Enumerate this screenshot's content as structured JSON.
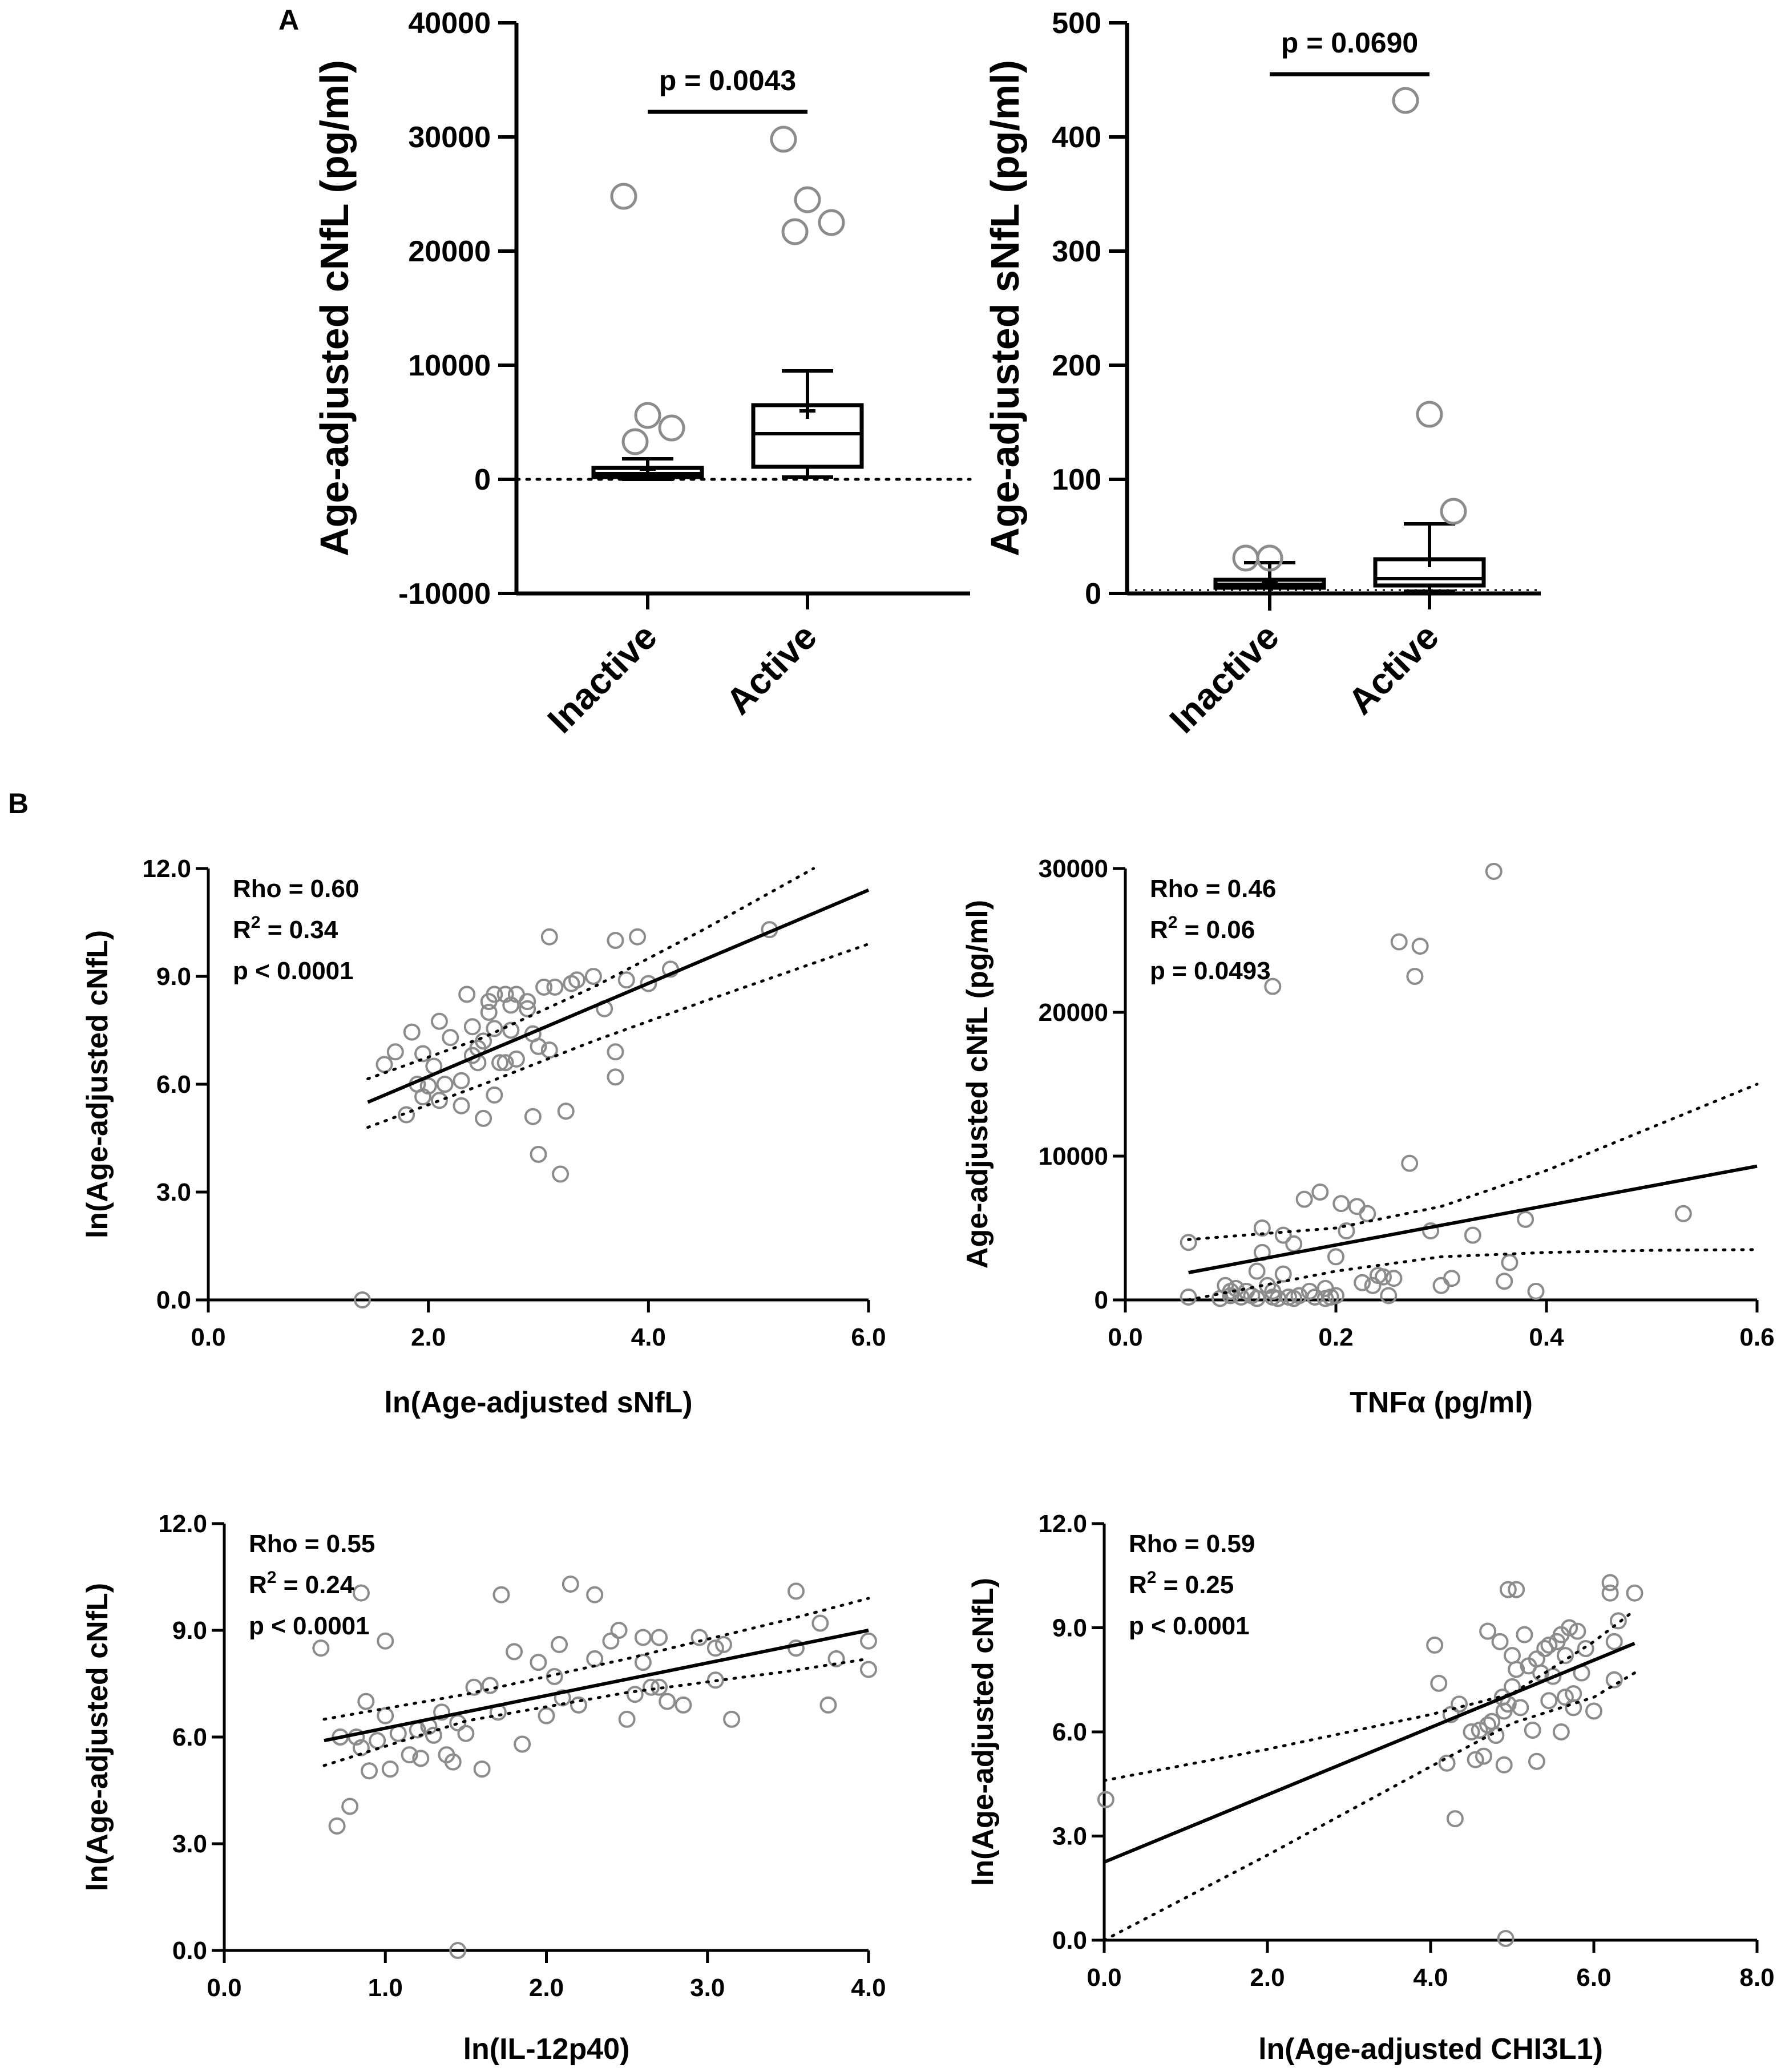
{
  "panel_labels": {
    "A": "A",
    "B": "B"
  },
  "colors": {
    "ink": "#000000",
    "marker": "#8c8c8c",
    "background": "#ffffff"
  },
  "chart_data": [
    {
      "id": "a1",
      "type": "box",
      "ylabel": "Age-adjusted cNfL (pg/ml)",
      "ylim": [
        -10000,
        40000
      ],
      "yticks": [
        -10000,
        0,
        10000,
        20000,
        30000,
        40000
      ],
      "categories": [
        "Inactive",
        "Active"
      ],
      "baseline": 0,
      "groups": [
        {
          "name": "Inactive",
          "q1": 200,
          "median": 500,
          "q3": 1000,
          "whisker_low": 0,
          "whisker_high": 1800,
          "mean": 900,
          "outliers": [
            24800,
            5600,
            4500,
            3300
          ]
        },
        {
          "name": "Active",
          "q1": 1100,
          "median": 4000,
          "q3": 6500,
          "whisker_low": 200,
          "whisker_high": 9500,
          "mean": 6000,
          "outliers": [
            29800,
            24500,
            22500,
            21700
          ]
        }
      ],
      "significance": {
        "text": "p = 0.0043",
        "y": 32200
      }
    },
    {
      "id": "a2",
      "type": "box",
      "ylabel": "Age-adjusted sNfL (pg/ml)",
      "ylim": [
        0,
        500
      ],
      "yticks": [
        0,
        100,
        200,
        300,
        400,
        500
      ],
      "categories": [
        "Inactive",
        "Active"
      ],
      "baseline": 0,
      "groups": [
        {
          "name": "Inactive",
          "q1": 5,
          "median": 8,
          "q3": 12,
          "whisker_low": -15,
          "whisker_high": 27,
          "mean": 9,
          "outliers": [
            31,
            31
          ]
        },
        {
          "name": "Active",
          "q1": 7,
          "median": 13,
          "q3": 30,
          "whisker_low": 2,
          "whisker_high": 61,
          "mean": 30,
          "outliers": [
            432,
            157,
            72
          ]
        }
      ],
      "significance": {
        "text": "p = 0.0690",
        "y": 455
      }
    },
    {
      "id": "b1",
      "type": "scatter",
      "xlabel": "ln(Age-adjusted sNfL)",
      "ylabel": "ln(Age-adjusted cNfL)",
      "xlim": [
        0,
        6
      ],
      "ylim": [
        0,
        12
      ],
      "xticks": [
        0,
        2,
        4,
        6
      ],
      "yticks": [
        0,
        3,
        6,
        9,
        12
      ],
      "xtick_labels": [
        "0.0",
        "2.0",
        "4.0",
        "6.0"
      ],
      "ytick_labels": [
        "0.0",
        "3.0",
        "6.0",
        "9.0",
        "12.0"
      ],
      "stats": {
        "rho": "Rho = 0.60",
        "r2_prefix": "R",
        "r2_suffix": " = 0.34",
        "p": "p < 0.0001"
      },
      "fit": {
        "x": [
          1.45,
          6.0
        ],
        "y": [
          5.5,
          11.4
        ]
      },
      "ci_upper": {
        "x": [
          1.45,
          2.5,
          3.5,
          4.5,
          5.5
        ],
        "y": [
          6.15,
          7.3,
          8.7,
          10.3,
          12.0
        ]
      },
      "ci_lower": {
        "x": [
          1.45,
          2.5,
          3.5,
          4.5,
          6.0
        ],
        "y": [
          4.8,
          6.0,
          7.2,
          8.3,
          9.9
        ]
      },
      "points": [
        [
          1.4,
          0
        ],
        [
          1.6,
          6.55
        ],
        [
          1.7,
          6.9
        ],
        [
          1.8,
          5.15
        ],
        [
          1.85,
          7.45
        ],
        [
          1.9,
          6.0
        ],
        [
          1.95,
          5.65
        ],
        [
          1.95,
          6.85
        ],
        [
          2.0,
          5.95
        ],
        [
          2.05,
          6.5
        ],
        [
          2.1,
          7.75
        ],
        [
          2.1,
          5.55
        ],
        [
          2.15,
          6.0
        ],
        [
          2.2,
          7.3
        ],
        [
          2.3,
          6.1
        ],
        [
          2.3,
          5.4
        ],
        [
          2.35,
          8.5
        ],
        [
          2.4,
          7.6
        ],
        [
          2.4,
          6.8
        ],
        [
          2.45,
          7.0
        ],
        [
          2.45,
          6.6
        ],
        [
          2.5,
          7.2
        ],
        [
          2.5,
          5.05
        ],
        [
          2.55,
          8.0
        ],
        [
          2.55,
          8.3
        ],
        [
          2.6,
          8.5
        ],
        [
          2.6,
          7.55
        ],
        [
          2.6,
          5.7
        ],
        [
          2.65,
          6.6
        ],
        [
          2.7,
          8.5
        ],
        [
          2.7,
          6.6
        ],
        [
          2.75,
          8.2
        ],
        [
          2.75,
          7.5
        ],
        [
          2.8,
          8.5
        ],
        [
          2.8,
          6.7
        ],
        [
          2.9,
          8.3
        ],
        [
          2.9,
          8.1
        ],
        [
          2.95,
          7.4
        ],
        [
          2.95,
          5.1
        ],
        [
          3.0,
          7.05
        ],
        [
          3.0,
          4.05
        ],
        [
          3.05,
          8.7
        ],
        [
          3.1,
          6.95
        ],
        [
          3.1,
          10.1
        ],
        [
          3.15,
          8.7
        ],
        [
          3.2,
          3.5
        ],
        [
          3.25,
          5.25
        ],
        [
          3.3,
          8.8
        ],
        [
          3.35,
          8.9
        ],
        [
          3.5,
          9.0
        ],
        [
          3.6,
          8.1
        ],
        [
          3.7,
          6.9
        ],
        [
          3.7,
          6.2
        ],
        [
          3.7,
          10.0
        ],
        [
          3.8,
          8.9
        ],
        [
          3.9,
          10.1
        ],
        [
          4.0,
          8.8
        ],
        [
          4.2,
          9.2
        ],
        [
          5.1,
          10.3
        ]
      ]
    },
    {
      "id": "b2",
      "type": "scatter",
      "xlabel": "TNFα (pg/ml)",
      "ylabel": "Age-adjusted cNfL (pg/ml)",
      "xlim": [
        0,
        0.6
      ],
      "ylim": [
        0,
        30000
      ],
      "xticks": [
        0,
        0.2,
        0.4,
        0.6
      ],
      "yticks": [
        0,
        10000,
        20000,
        30000
      ],
      "xtick_labels": [
        "0.0",
        "0.2",
        "0.4",
        "0.6"
      ],
      "ytick_labels": [
        "0",
        "10000",
        "20000",
        "30000"
      ],
      "stats": {
        "rho": "Rho = 0.46",
        "r2_prefix": "R",
        "r2_suffix": " = 0.06",
        "p": "p = 0.0493"
      },
      "fit": {
        "x": [
          0.06,
          0.6
        ],
        "y": [
          1900,
          9300
        ]
      },
      "ci_upper": {
        "x": [
          0.06,
          0.2,
          0.3,
          0.4,
          0.5,
          0.6
        ],
        "y": [
          4200,
          5000,
          6500,
          9000,
          12000,
          15000
        ]
      },
      "ci_lower": {
        "x": [
          0.06,
          0.2,
          0.3,
          0.4,
          0.5,
          0.6
        ],
        "y": [
          -400,
          2000,
          3000,
          3300,
          3450,
          3500
        ]
      },
      "points": [
        [
          0.06,
          4000
        ],
        [
          0.06,
          200
        ],
        [
          0.09,
          100
        ],
        [
          0.095,
          1000
        ],
        [
          0.1,
          600
        ],
        [
          0.1,
          300
        ],
        [
          0.105,
          800
        ],
        [
          0.11,
          200
        ],
        [
          0.115,
          600
        ],
        [
          0.12,
          300
        ],
        [
          0.125,
          100
        ],
        [
          0.125,
          2000
        ],
        [
          0.13,
          3300
        ],
        [
          0.13,
          5000
        ],
        [
          0.135,
          1000
        ],
        [
          0.14,
          200
        ],
        [
          0.14,
          600
        ],
        [
          0.145,
          100
        ],
        [
          0.15,
          1800
        ],
        [
          0.15,
          4500
        ],
        [
          0.155,
          200
        ],
        [
          0.16,
          100
        ],
        [
          0.16,
          3900
        ],
        [
          0.165,
          300
        ],
        [
          0.17,
          7000
        ],
        [
          0.175,
          600
        ],
        [
          0.18,
          200
        ],
        [
          0.185,
          7500
        ],
        [
          0.19,
          100
        ],
        [
          0.19,
          800
        ],
        [
          0.195,
          200
        ],
        [
          0.2,
          300
        ],
        [
          0.2,
          3000
        ],
        [
          0.205,
          6700
        ],
        [
          0.21,
          4800
        ],
        [
          0.22,
          6500
        ],
        [
          0.225,
          1200
        ],
        [
          0.23,
          6000
        ],
        [
          0.235,
          1000
        ],
        [
          0.24,
          1700
        ],
        [
          0.245,
          1600
        ],
        [
          0.25,
          300
        ],
        [
          0.255,
          1500
        ],
        [
          0.26,
          24900
        ],
        [
          0.27,
          9500
        ],
        [
          0.275,
          22500
        ],
        [
          0.28,
          24600
        ],
        [
          0.29,
          4800
        ],
        [
          0.3,
          1000
        ],
        [
          0.31,
          1500
        ],
        [
          0.33,
          4500
        ],
        [
          0.35,
          29800
        ],
        [
          0.36,
          1300
        ],
        [
          0.365,
          2600
        ],
        [
          0.38,
          5600
        ],
        [
          0.39,
          600
        ],
        [
          0.53,
          6000
        ],
        [
          0.14,
          21800
        ]
      ]
    },
    {
      "id": "b3",
      "type": "scatter",
      "xlabel": "ln(IL-12p40)",
      "ylabel": "ln(Age-adjusted cNfL)",
      "xlim": [
        0,
        4
      ],
      "ylim": [
        0,
        12
      ],
      "xticks": [
        0,
        1,
        2,
        3,
        4
      ],
      "yticks": [
        0,
        3,
        6,
        9,
        12
      ],
      "xtick_labels": [
        "0.0",
        "1.0",
        "2.0",
        "3.0",
        "4.0"
      ],
      "ytick_labels": [
        "0.0",
        "3.0",
        "6.0",
        "9.0",
        "12.0"
      ],
      "stats": {
        "rho": "Rho = 0.55",
        "r2_prefix": "R",
        "r2_suffix": " = 0.24",
        "p": "p < 0.0001"
      },
      "fit": {
        "x": [
          0.62,
          4.0
        ],
        "y": [
          5.9,
          9.0
        ]
      },
      "ci_upper": {
        "x": [
          0.62,
          1.5,
          2.5,
          3.5,
          4.0
        ],
        "y": [
          6.5,
          7.2,
          8.2,
          9.3,
          9.9
        ]
      },
      "ci_lower": {
        "x": [
          0.62,
          1.5,
          2.5,
          3.5,
          4.0
        ],
        "y": [
          5.2,
          6.45,
          7.25,
          7.85,
          8.2
        ]
      },
      "points": [
        [
          0.6,
          8.5
        ],
        [
          0.7,
          3.5
        ],
        [
          0.72,
          6.0
        ],
        [
          0.78,
          4.05
        ],
        [
          0.82,
          6.0
        ],
        [
          0.85,
          10.05
        ],
        [
          0.85,
          5.7
        ],
        [
          0.88,
          7.0
        ],
        [
          0.9,
          5.05
        ],
        [
          0.95,
          5.9
        ],
        [
          1.0,
          8.7
        ],
        [
          1.0,
          6.6
        ],
        [
          1.03,
          5.1
        ],
        [
          1.08,
          6.1
        ],
        [
          1.15,
          5.5
        ],
        [
          1.2,
          6.2
        ],
        [
          1.22,
          5.4
        ],
        [
          1.27,
          6.3
        ],
        [
          1.3,
          6.05
        ],
        [
          1.35,
          6.7
        ],
        [
          1.38,
          5.5
        ],
        [
          1.42,
          5.3
        ],
        [
          1.45,
          6.4
        ],
        [
          1.5,
          6.1
        ],
        [
          1.55,
          7.4
        ],
        [
          1.6,
          5.1
        ],
        [
          1.65,
          7.45
        ],
        [
          1.7,
          6.7
        ],
        [
          1.72,
          10.0
        ],
        [
          1.8,
          8.4
        ],
        [
          1.85,
          5.8
        ],
        [
          1.95,
          8.1
        ],
        [
          2.0,
          6.6
        ],
        [
          2.05,
          7.7
        ],
        [
          2.08,
          8.6
        ],
        [
          2.1,
          7.1
        ],
        [
          2.15,
          10.3
        ],
        [
          2.2,
          6.9
        ],
        [
          2.3,
          10.0
        ],
        [
          2.3,
          8.2
        ],
        [
          2.4,
          8.7
        ],
        [
          2.45,
          9.0
        ],
        [
          2.5,
          6.5
        ],
        [
          2.55,
          7.2
        ],
        [
          2.6,
          8.8
        ],
        [
          2.6,
          8.1
        ],
        [
          2.65,
          7.4
        ],
        [
          2.7,
          7.4
        ],
        [
          2.7,
          8.8
        ],
        [
          2.75,
          7.0
        ],
        [
          2.85,
          6.9
        ],
        [
          2.95,
          8.8
        ],
        [
          3.05,
          8.5
        ],
        [
          3.05,
          7.6
        ],
        [
          3.1,
          8.6
        ],
        [
          3.15,
          6.5
        ],
        [
          3.55,
          8.5
        ],
        [
          3.55,
          10.1
        ],
        [
          3.7,
          9.2
        ],
        [
          3.75,
          6.9
        ],
        [
          3.8,
          8.2
        ],
        [
          4.0,
          8.7
        ],
        [
          4.0,
          7.9
        ],
        [
          1.45,
          0
        ]
      ]
    },
    {
      "id": "b4",
      "type": "scatter",
      "xlabel": "ln(Age-adjusted CHI3L1)",
      "ylabel": "ln(Age-adjusted cNfL)",
      "xlim": [
        0,
        8
      ],
      "ylim": [
        0,
        12
      ],
      "xticks": [
        0,
        2,
        4,
        6,
        8
      ],
      "yticks": [
        0,
        3,
        6,
        9,
        12
      ],
      "xtick_labels": [
        "0.0",
        "2.0",
        "4.0",
        "6.0",
        "8.0"
      ],
      "ytick_labels": [
        "0.0",
        "3.0",
        "6.0",
        "9.0",
        "12.0"
      ],
      "stats": {
        "rho": "Rho = 0.59",
        "r2_prefix": "R",
        "r2_suffix": " = 0.25",
        "p": "p < 0.0001"
      },
      "fit": {
        "x": [
          0.0,
          6.5
        ],
        "y": [
          2.25,
          8.55
        ]
      },
      "ci_upper": {
        "x": [
          0.0,
          2.0,
          4.0,
          5.0,
          6.0,
          6.5
        ],
        "y": [
          4.6,
          5.5,
          6.5,
          7.1,
          8.6,
          9.5
        ]
      },
      "ci_lower": {
        "x": [
          0.0,
          2.0,
          4.0,
          5.0,
          6.0,
          6.5
        ],
        "y": [
          -0.1,
          2.45,
          5.0,
          6.25,
          7.0,
          7.7
        ]
      },
      "points": [
        [
          0.02,
          4.05
        ],
        [
          4.05,
          8.5
        ],
        [
          4.1,
          7.4
        ],
        [
          4.2,
          5.1
        ],
        [
          4.25,
          6.5
        ],
        [
          4.3,
          3.5
        ],
        [
          4.35,
          6.8
        ],
        [
          4.5,
          6.0
        ],
        [
          4.55,
          5.2
        ],
        [
          4.6,
          6.05
        ],
        [
          4.65,
          5.3
        ],
        [
          4.7,
          6.2
        ],
        [
          4.7,
          8.9
        ],
        [
          4.75,
          6.3
        ],
        [
          4.8,
          5.9
        ],
        [
          4.85,
          8.6
        ],
        [
          4.88,
          7.0
        ],
        [
          4.9,
          6.6
        ],
        [
          4.9,
          5.05
        ],
        [
          4.92,
          0.05
        ],
        [
          4.95,
          6.8
        ],
        [
          4.95,
          10.1
        ],
        [
          5.0,
          7.3
        ],
        [
          5.0,
          8.2
        ],
        [
          5.05,
          7.8
        ],
        [
          5.05,
          10.1
        ],
        [
          5.1,
          6.7
        ],
        [
          5.15,
          8.8
        ],
        [
          5.2,
          7.9
        ],
        [
          5.25,
          6.05
        ],
        [
          5.3,
          5.15
        ],
        [
          5.3,
          8.1
        ],
        [
          5.35,
          7.7
        ],
        [
          5.4,
          8.4
        ],
        [
          5.45,
          6.9
        ],
        [
          5.45,
          8.5
        ],
        [
          5.5,
          7.6
        ],
        [
          5.55,
          8.6
        ],
        [
          5.6,
          6.0
        ],
        [
          5.6,
          8.8
        ],
        [
          5.65,
          7.0
        ],
        [
          5.65,
          8.2
        ],
        [
          5.7,
          9.0
        ],
        [
          5.75,
          7.1
        ],
        [
          5.75,
          6.7
        ],
        [
          5.8,
          8.9
        ],
        [
          5.85,
          7.7
        ],
        [
          5.9,
          8.4
        ],
        [
          6.0,
          6.6
        ],
        [
          6.2,
          10.3
        ],
        [
          6.2,
          10.0
        ],
        [
          6.25,
          8.6
        ],
        [
          6.3,
          9.2
        ],
        [
          6.5,
          10.0
        ],
        [
          6.25,
          7.5
        ]
      ]
    }
  ]
}
